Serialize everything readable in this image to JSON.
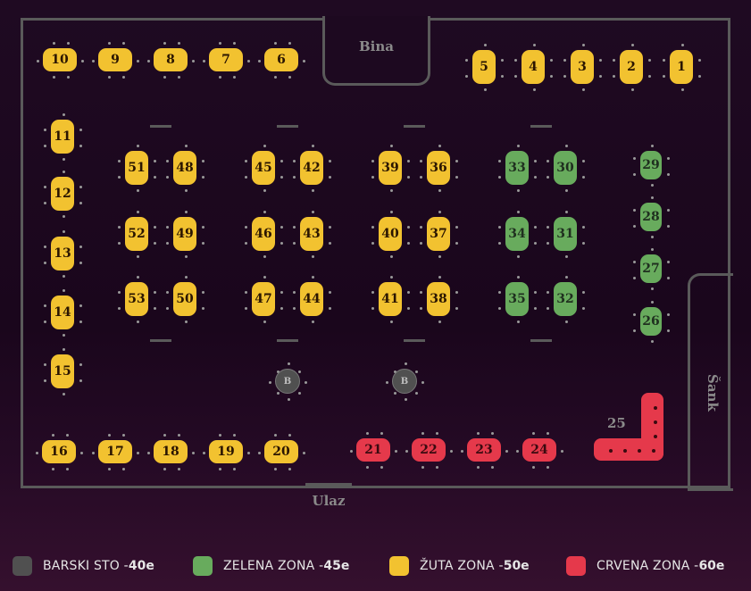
{
  "labels": {
    "stage": "Bina",
    "bar": "Šank",
    "entrance": "Ulaz"
  },
  "colors": {
    "yellow": "#f2c230",
    "green": "#68ab5d",
    "red": "#e5394b",
    "grey": "#505050"
  },
  "tables": [
    {
      "label": "10",
      "zone": "yellow"
    },
    {
      "label": "9",
      "zone": "yellow"
    },
    {
      "label": "8",
      "zone": "yellow"
    },
    {
      "label": "7",
      "zone": "yellow"
    },
    {
      "label": "6",
      "zone": "yellow"
    },
    {
      "label": "5",
      "zone": "yellow"
    },
    {
      "label": "4",
      "zone": "yellow"
    },
    {
      "label": "3",
      "zone": "yellow"
    },
    {
      "label": "2",
      "zone": "yellow"
    },
    {
      "label": "1",
      "zone": "yellow"
    },
    {
      "label": "11",
      "zone": "yellow"
    },
    {
      "label": "12",
      "zone": "yellow"
    },
    {
      "label": "13",
      "zone": "yellow"
    },
    {
      "label": "14",
      "zone": "yellow"
    },
    {
      "label": "15",
      "zone": "yellow"
    },
    {
      "label": "51",
      "zone": "yellow"
    },
    {
      "label": "48",
      "zone": "yellow"
    },
    {
      "label": "52",
      "zone": "yellow"
    },
    {
      "label": "49",
      "zone": "yellow"
    },
    {
      "label": "53",
      "zone": "yellow"
    },
    {
      "label": "50",
      "zone": "yellow"
    },
    {
      "label": "45",
      "zone": "yellow"
    },
    {
      "label": "42",
      "zone": "yellow"
    },
    {
      "label": "46",
      "zone": "yellow"
    },
    {
      "label": "43",
      "zone": "yellow"
    },
    {
      "label": "47",
      "zone": "yellow"
    },
    {
      "label": "44",
      "zone": "yellow"
    },
    {
      "label": "39",
      "zone": "yellow"
    },
    {
      "label": "36",
      "zone": "yellow"
    },
    {
      "label": "40",
      "zone": "yellow"
    },
    {
      "label": "37",
      "zone": "yellow"
    },
    {
      "label": "41",
      "zone": "yellow"
    },
    {
      "label": "38",
      "zone": "yellow"
    },
    {
      "label": "33",
      "zone": "green"
    },
    {
      "label": "30",
      "zone": "green"
    },
    {
      "label": "34",
      "zone": "green"
    },
    {
      "label": "31",
      "zone": "green"
    },
    {
      "label": "35",
      "zone": "green"
    },
    {
      "label": "32",
      "zone": "green"
    },
    {
      "label": "29",
      "zone": "green"
    },
    {
      "label": "28",
      "zone": "green"
    },
    {
      "label": "27",
      "zone": "green"
    },
    {
      "label": "26",
      "zone": "green"
    },
    {
      "label": "B",
      "zone": "grey"
    },
    {
      "label": "B",
      "zone": "grey"
    },
    {
      "label": "16",
      "zone": "yellow"
    },
    {
      "label": "17",
      "zone": "yellow"
    },
    {
      "label": "18",
      "zone": "yellow"
    },
    {
      "label": "19",
      "zone": "yellow"
    },
    {
      "label": "20",
      "zone": "yellow"
    },
    {
      "label": "21",
      "zone": "red"
    },
    {
      "label": "22",
      "zone": "red"
    },
    {
      "label": "23",
      "zone": "red"
    },
    {
      "label": "24",
      "zone": "red"
    }
  ],
  "l_table": {
    "label": "25",
    "zone": "red"
  },
  "legend": [
    {
      "label": "BARSKI STO - ",
      "price": "40e",
      "zone": "grey"
    },
    {
      "label": "ZELENA ZONA - ",
      "price": "45e",
      "zone": "green"
    },
    {
      "label": "ŽUTA ZONA - ",
      "price": "50e",
      "zone": "yellow"
    },
    {
      "label": "CRVENA ZONA - ",
      "price": "60e",
      "zone": "red"
    }
  ]
}
